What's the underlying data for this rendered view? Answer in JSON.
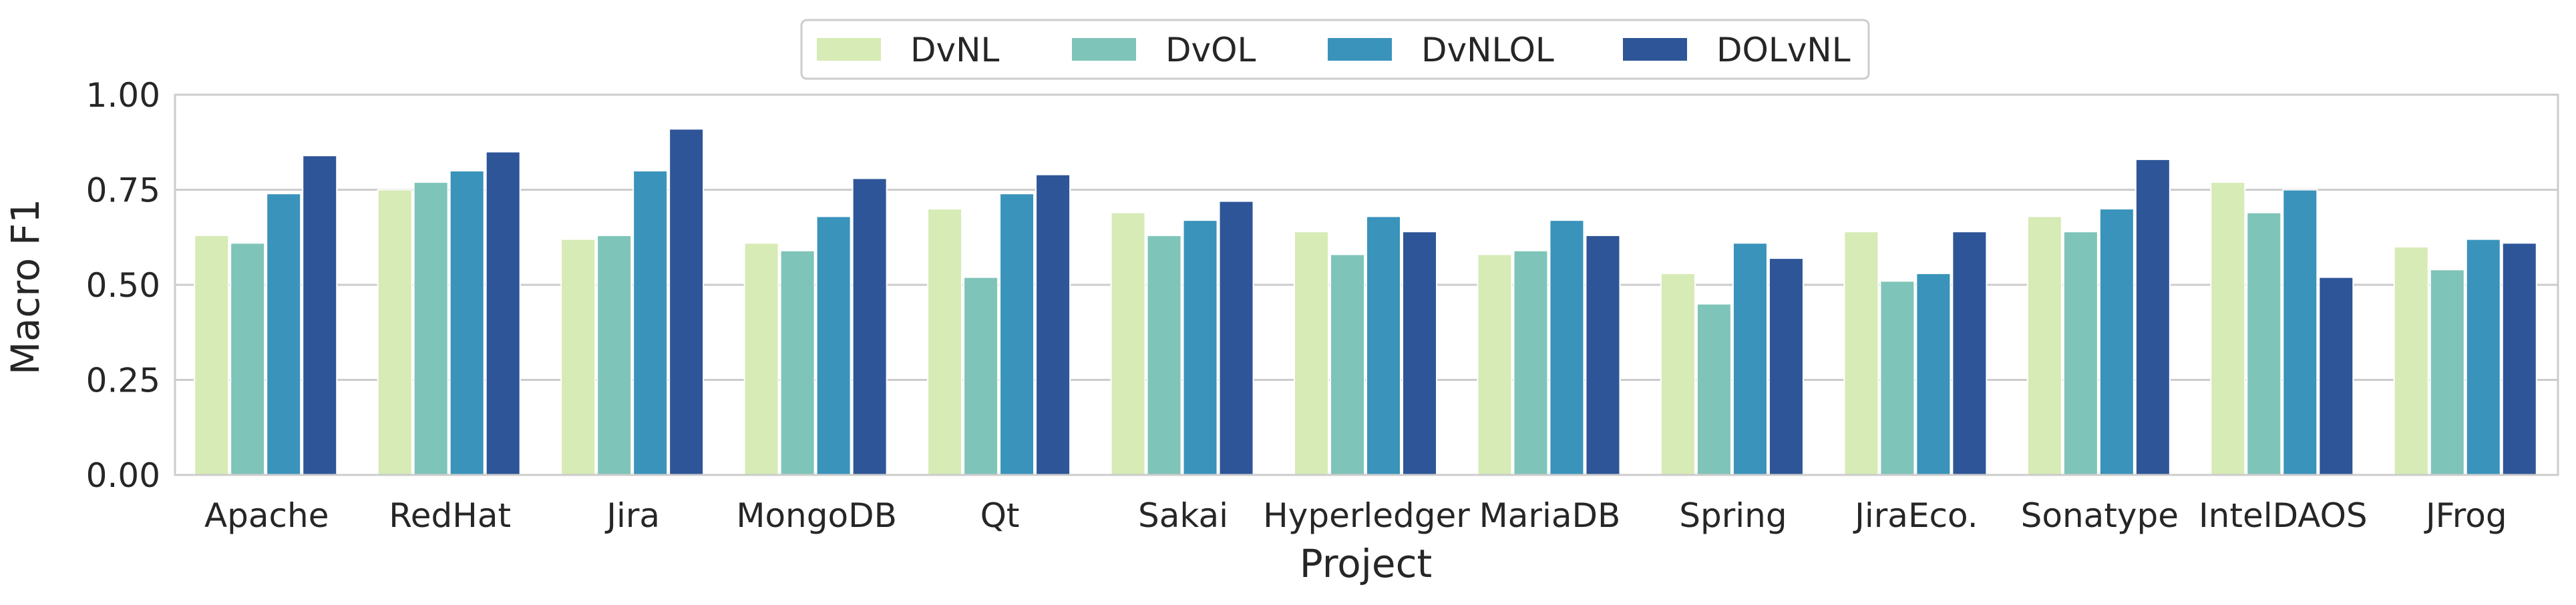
{
  "chart_data": {
    "type": "bar",
    "xlabel": "Project",
    "ylabel": "Macro F1",
    "ylim": [
      0,
      1.0
    ],
    "yticks": [
      "0.00",
      "0.25",
      "0.50",
      "0.75",
      "1.00"
    ],
    "grid": "horizontal",
    "legend_position": "top-center",
    "categories": [
      "Apache",
      "RedHat",
      "Jira",
      "MongoDB",
      "Qt",
      "Sakai",
      "Hyperledger",
      "MariaDB",
      "Spring",
      "JiraEco.",
      "Sonatype",
      "IntelDAOS",
      "JFrog"
    ],
    "series": [
      {
        "name": "DvNL",
        "color": "#d6ebb5",
        "values": [
          0.63,
          0.75,
          0.62,
          0.61,
          0.7,
          0.69,
          0.64,
          0.58,
          0.53,
          0.64,
          0.68,
          0.77,
          0.6
        ]
      },
      {
        "name": "DvOL",
        "color": "#7fc4b8",
        "values": [
          0.61,
          0.77,
          0.63,
          0.59,
          0.52,
          0.63,
          0.58,
          0.59,
          0.45,
          0.51,
          0.64,
          0.69,
          0.54
        ]
      },
      {
        "name": "DvNLOL",
        "color": "#3a93bb",
        "values": [
          0.74,
          0.8,
          0.8,
          0.68,
          0.74,
          0.67,
          0.68,
          0.67,
          0.61,
          0.53,
          0.7,
          0.75,
          0.62
        ]
      },
      {
        "name": "DOLvNL",
        "color": "#2e5597",
        "values": [
          0.84,
          0.85,
          0.91,
          0.78,
          0.79,
          0.72,
          0.64,
          0.63,
          0.57,
          0.64,
          0.83,
          0.52,
          0.61
        ]
      }
    ]
  }
}
